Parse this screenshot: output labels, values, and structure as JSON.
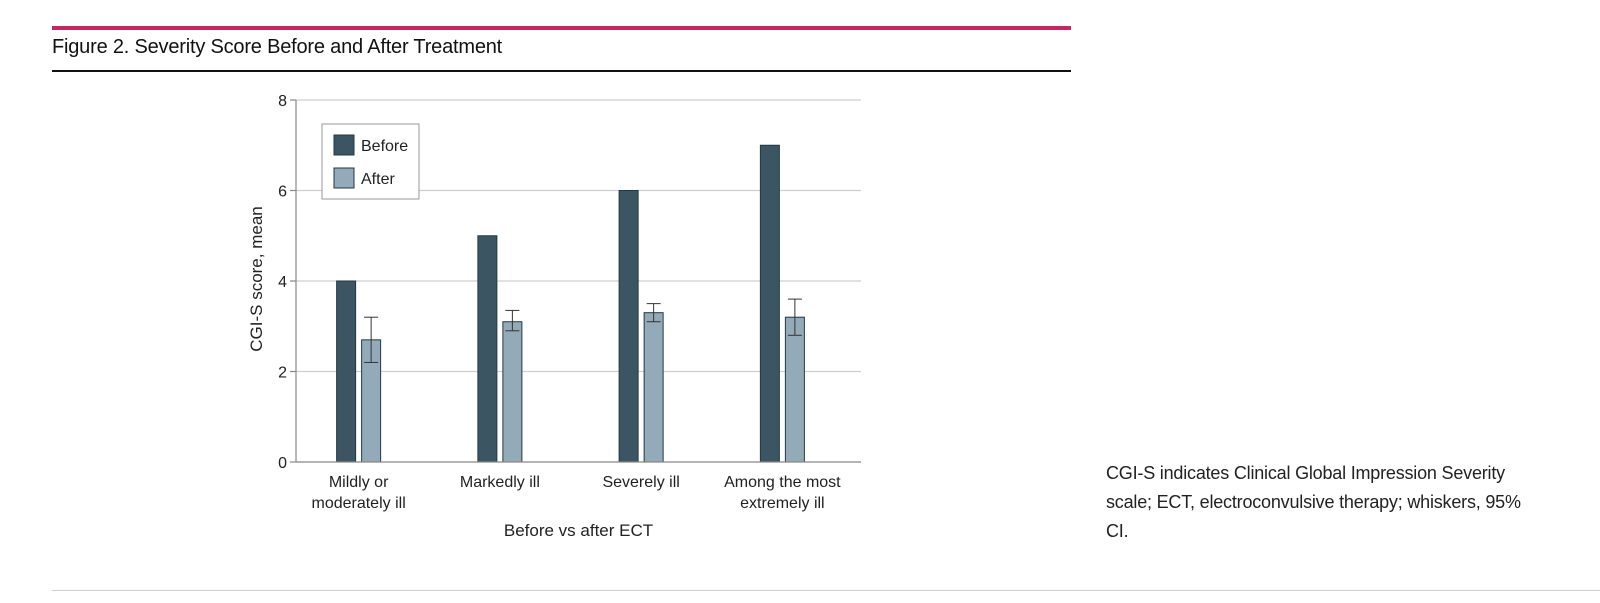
{
  "figure": {
    "title": "Figure 2. Severity Score Before and After Treatment",
    "caption": "CGI-S indicates Clinical Global Impression Severity scale; ECT, electroconvulsive therapy; whiskers, 95% CI."
  },
  "colors": {
    "accent_rule": "#c8265f",
    "before": "#3b5563",
    "after": "#93aab8"
  },
  "chart_data": {
    "type": "bar",
    "categories": [
      [
        "Mildly or",
        "moderately ill"
      ],
      [
        "Markedly ill"
      ],
      [
        "Severely ill"
      ],
      [
        "Among the most",
        "extremely ill"
      ]
    ],
    "series": [
      {
        "name": "Before",
        "values": [
          4,
          5,
          6,
          7
        ]
      },
      {
        "name": "After",
        "values": [
          2.7,
          3.1,
          3.3,
          3.2
        ],
        "ci_low": [
          2.2,
          2.9,
          3.1,
          2.8
        ],
        "ci_high": [
          3.2,
          3.35,
          3.5,
          3.6
        ]
      }
    ],
    "xlabel": "Before vs after ECT",
    "ylabel": "CGI-S score, mean",
    "ylim": [
      0,
      8
    ],
    "yticks": [
      0,
      2,
      4,
      6,
      8
    ],
    "grid": true,
    "legend_position": "top-left"
  }
}
